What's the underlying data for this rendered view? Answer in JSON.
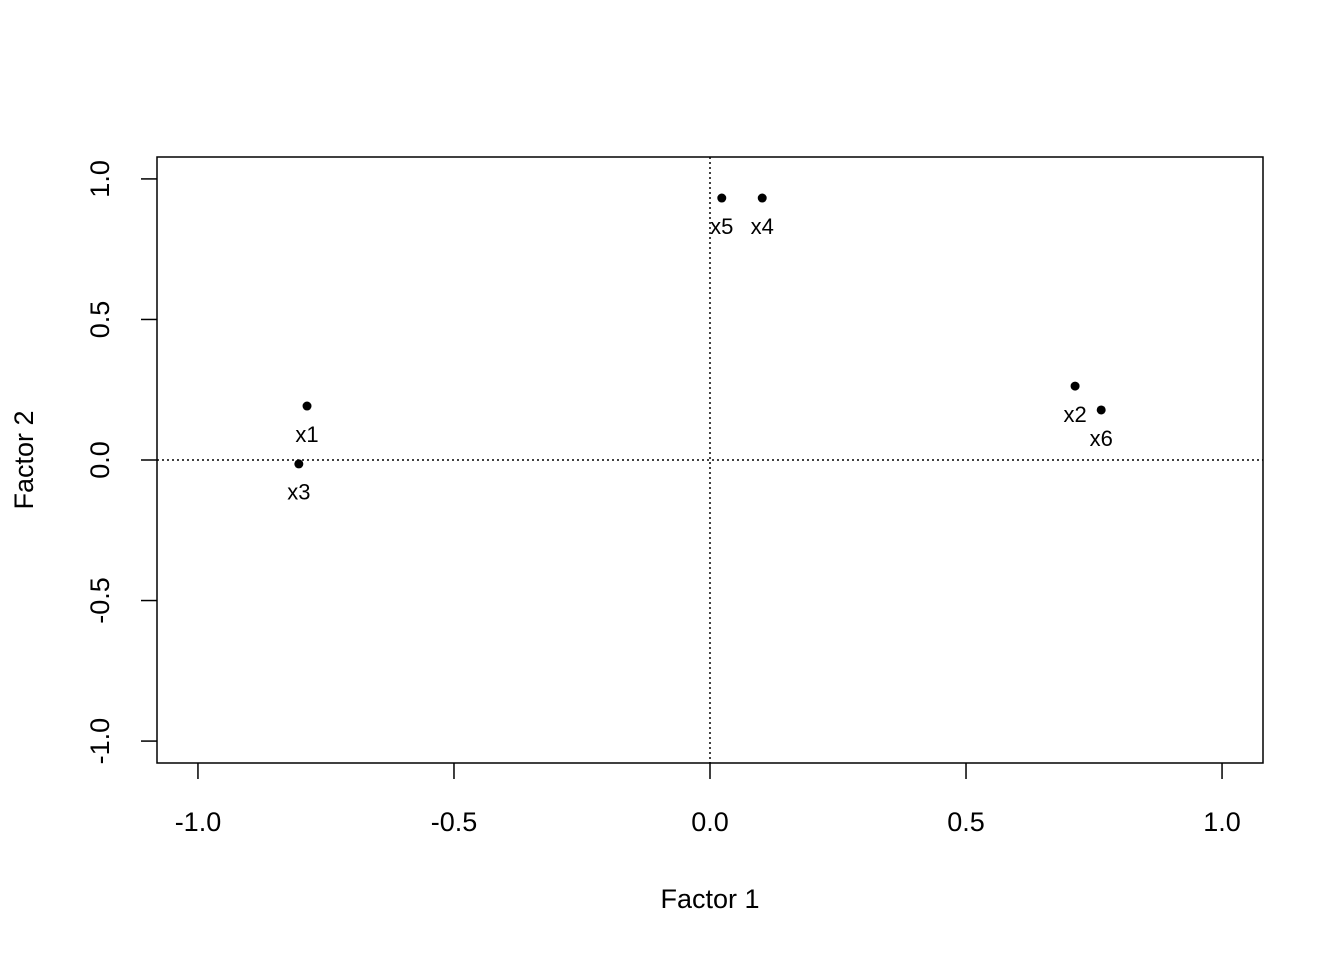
{
  "chart_data": {
    "type": "scatter",
    "x_label": "Factor 1",
    "y_label": "Factor 2",
    "xlim": [
      -1.08,
      1.08
    ],
    "ylim": [
      -1.078,
      1.078
    ],
    "xticks": [
      {
        "value": -1,
        "label": "-1.0"
      },
      {
        "value": -0.5,
        "label": "-0.5"
      },
      {
        "value": 0,
        "label": "0.0"
      },
      {
        "value": 0.5,
        "label": "0.5"
      },
      {
        "value": 1,
        "label": "1.0"
      }
    ],
    "yticks": [
      {
        "value": -1,
        "label": "-1.0"
      },
      {
        "value": -0.5,
        "label": "-0.5"
      },
      {
        "value": 0,
        "label": "0.0"
      },
      {
        "value": 0.5,
        "label": "0.5"
      },
      {
        "value": 1,
        "label": "1.0"
      }
    ],
    "color": "#000000",
    "labels": [
      "x1",
      "x2",
      "x3",
      "x4",
      "x5",
      "x6"
    ],
    "x": [
      -0.787,
      0.713,
      -0.803,
      0.102,
      0.023,
      0.764
    ],
    "values": [
      0.192,
      0.263,
      -0.014,
      0.932,
      0.932,
      0.178
    ]
  }
}
